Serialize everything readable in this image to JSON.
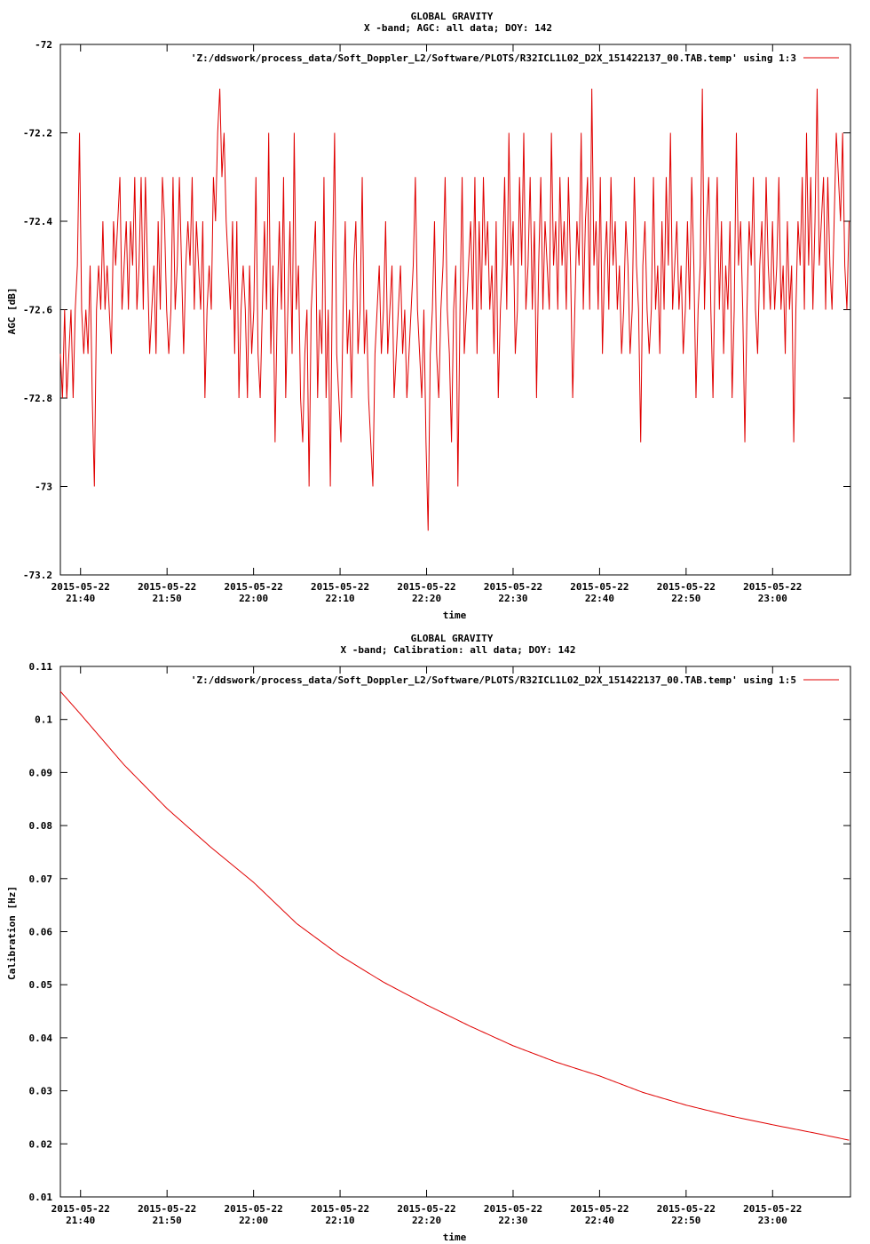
{
  "charts": [
    {
      "id": "agc",
      "title_line1": "GLOBAL GRAVITY",
      "title_line2": "X -band; AGC: all data; DOY: 142",
      "ylabel": "AGC [dB]",
      "xlabel": "time",
      "legend": "'Z:/ddswork/process_data/Soft_Doppler_L2/Software/PLOTS/R32ICL1L02_D2X_151422137_00.TAB.temp' using 1:3",
      "ytick_labels": [
        "-72",
        "-72.2",
        "-72.4",
        "-72.6",
        "-72.8",
        "-73",
        "-73.2"
      ],
      "xtick_date": "2015-05-22",
      "xtick_times": [
        "21:40",
        "21:50",
        "22:00",
        "22:10",
        "22:20",
        "22:30",
        "22:40",
        "22:50",
        "23:00"
      ]
    },
    {
      "id": "calibration",
      "title_line1": "GLOBAL GRAVITY",
      "title_line2": "X -band; Calibration: all data; DOY: 142",
      "ylabel": "Calibration [Hz]",
      "xlabel": "time",
      "legend": "'Z:/ddswork/process_data/Soft_Doppler_L2/Software/PLOTS/R32ICL1L02_D2X_151422137_00.TAB.temp' using 1:5",
      "ytick_labels": [
        "0.11",
        "0.1",
        "0.09",
        "0.08",
        "0.07",
        "0.06",
        "0.05",
        "0.04",
        "0.03",
        "0.02",
        "0.01"
      ],
      "xtick_date": "2015-05-22",
      "xtick_times": [
        "21:40",
        "21:50",
        "22:00",
        "22:10",
        "22:20",
        "22:30",
        "22:40",
        "22:50",
        "23:00"
      ]
    }
  ],
  "chart_data": [
    {
      "type": "line",
      "title": "GLOBAL GRAVITY X -band; AGC: all data; DOY: 142",
      "xlabel": "time",
      "ylabel": "AGC [dB]",
      "xlim": [
        "2015-05-22 21:37:40",
        "2015-05-22 23:09:00"
      ],
      "ylim": [
        -73.2,
        -72
      ],
      "grid": false,
      "legend_position": "top-right",
      "line_color": "#e00000",
      "x_start": "2015-05-22 21:37:40",
      "x_end": "2015-05-22 23:08:50",
      "series": [
        {
          "name": "'Z:/ddswork/process_data/Soft_Doppler_L2/Software/PLOTS/R32ICL1L02_D2X_151422137_00.TAB.temp' using 1:3",
          "values": [
            -72.7,
            -72.8,
            -72.6,
            -72.8,
            -72.7,
            -72.6,
            -72.8,
            -72.6,
            -72.5,
            -72.2,
            -72.6,
            -72.7,
            -72.6,
            -72.7,
            -72.5,
            -72.8,
            -73,
            -72.6,
            -72.5,
            -72.6,
            -72.4,
            -72.6,
            -72.5,
            -72.6,
            -72.7,
            -72.4,
            -72.5,
            -72.4,
            -72.3,
            -72.6,
            -72.5,
            -72.4,
            -72.6,
            -72.4,
            -72.5,
            -72.3,
            -72.6,
            -72.5,
            -72.3,
            -72.6,
            -72.3,
            -72.5,
            -72.7,
            -72.6,
            -72.5,
            -72.7,
            -72.4,
            -72.6,
            -72.3,
            -72.4,
            -72.6,
            -72.7,
            -72.6,
            -72.3,
            -72.6,
            -72.5,
            -72.3,
            -72.5,
            -72.7,
            -72.5,
            -72.4,
            -72.5,
            -72.3,
            -72.6,
            -72.4,
            -72.5,
            -72.6,
            -72.4,
            -72.8,
            -72.6,
            -72.5,
            -72.6,
            -72.3,
            -72.4,
            -72.2,
            -72.1,
            -72.3,
            -72.2,
            -72.4,
            -72.5,
            -72.6,
            -72.4,
            -72.7,
            -72.4,
            -72.8,
            -72.6,
            -72.5,
            -72.6,
            -72.8,
            -72.5,
            -72.7,
            -72.6,
            -72.3,
            -72.7,
            -72.8,
            -72.6,
            -72.4,
            -72.6,
            -72.2,
            -72.7,
            -72.5,
            -72.9,
            -72.6,
            -72.4,
            -72.6,
            -72.3,
            -72.8,
            -72.6,
            -72.4,
            -72.7,
            -72.2,
            -72.6,
            -72.5,
            -72.8,
            -72.9,
            -72.7,
            -72.6,
            -73,
            -72.6,
            -72.5,
            -72.4,
            -72.8,
            -72.6,
            -72.7,
            -72.3,
            -72.8,
            -72.6,
            -73,
            -72.5,
            -72.2,
            -72.7,
            -72.8,
            -72.9,
            -72.6,
            -72.4,
            -72.7,
            -72.6,
            -72.8,
            -72.5,
            -72.4,
            -72.7,
            -72.6,
            -72.3,
            -72.7,
            -72.6,
            -72.8,
            -72.9,
            -73,
            -72.7,
            -72.6,
            -72.5,
            -72.7,
            -72.6,
            -72.4,
            -72.7,
            -72.6,
            -72.5,
            -72.8,
            -72.7,
            -72.6,
            -72.5,
            -72.7,
            -72.6,
            -72.8,
            -72.7,
            -72.6,
            -72.5,
            -72.3,
            -72.6,
            -72.7,
            -72.8,
            -72.6,
            -72.9,
            -73.1,
            -72.7,
            -72.6,
            -72.4,
            -72.7,
            -72.8,
            -72.6,
            -72.5,
            -72.3,
            -72.6,
            -72.7,
            -72.9,
            -72.6,
            -72.5,
            -73,
            -72.6,
            -72.3,
            -72.7,
            -72.6,
            -72.5,
            -72.4,
            -72.6,
            -72.3,
            -72.7,
            -72.4,
            -72.6,
            -72.3,
            -72.5,
            -72.4,
            -72.6,
            -72.5,
            -72.7,
            -72.4,
            -72.8,
            -72.6,
            -72.5,
            -72.3,
            -72.6,
            -72.2,
            -72.5,
            -72.4,
            -72.7,
            -72.6,
            -72.3,
            -72.5,
            -72.2,
            -72.6,
            -72.5,
            -72.3,
            -72.6,
            -72.4,
            -72.8,
            -72.5,
            -72.3,
            -72.6,
            -72.4,
            -72.5,
            -72.6,
            -72.2,
            -72.5,
            -72.4,
            -72.6,
            -72.3,
            -72.5,
            -72.4,
            -72.6,
            -72.3,
            -72.5,
            -72.8,
            -72.6,
            -72.4,
            -72.5,
            -72.2,
            -72.6,
            -72.4,
            -72.3,
            -72.6,
            -72.1,
            -72.5,
            -72.4,
            -72.6,
            -72.3,
            -72.7,
            -72.5,
            -72.4,
            -72.6,
            -72.3,
            -72.5,
            -72.4,
            -72.6,
            -72.5,
            -72.7,
            -72.6,
            -72.4,
            -72.5,
            -72.7,
            -72.6,
            -72.3,
            -72.5,
            -72.6,
            -72.9,
            -72.5,
            -72.4,
            -72.6,
            -72.7,
            -72.6,
            -72.3,
            -72.6,
            -72.5,
            -72.7,
            -72.4,
            -72.6,
            -72.3,
            -72.5,
            -72.2,
            -72.6,
            -72.5,
            -72.4,
            -72.6,
            -72.5,
            -72.7,
            -72.6,
            -72.4,
            -72.6,
            -72.3,
            -72.5,
            -72.8,
            -72.6,
            -72.5,
            -72.1,
            -72.6,
            -72.4,
            -72.3,
            -72.6,
            -72.8,
            -72.5,
            -72.3,
            -72.6,
            -72.4,
            -72.7,
            -72.5,
            -72.6,
            -72.4,
            -72.8,
            -72.6,
            -72.2,
            -72.5,
            -72.4,
            -72.6,
            -72.9,
            -72.6,
            -72.4,
            -72.5,
            -72.3,
            -72.6,
            -72.7,
            -72.5,
            -72.4,
            -72.6,
            -72.3,
            -72.5,
            -72.6,
            -72.4,
            -72.6,
            -72.5,
            -72.3,
            -72.6,
            -72.5,
            -72.7,
            -72.4,
            -72.6,
            -72.5,
            -72.9,
            -72.6,
            -72.4,
            -72.5,
            -72.3,
            -72.6,
            -72.2,
            -72.5,
            -72.3,
            -72.6,
            -72.4,
            -72.1,
            -72.5,
            -72.4,
            -72.3,
            -72.6,
            -72.3,
            -72.5,
            -72.6,
            -72.4,
            -72.2,
            -72.3,
            -72.4,
            -72.2,
            -72.5,
            -72.6,
            -72.4
          ]
        }
      ]
    },
    {
      "type": "line",
      "title": "GLOBAL GRAVITY X -band; Calibration: all data; DOY: 142",
      "xlabel": "time",
      "ylabel": "Calibration [Hz]",
      "xlim": [
        "2015-05-22 21:37:40",
        "2015-05-22 23:09:00"
      ],
      "ylim": [
        0.01,
        0.11
      ],
      "grid": false,
      "legend_position": "top-right",
      "line_color": "#e00000",
      "series": [
        {
          "name": "'Z:/ddswork/process_data/Soft_Doppler_L2/Software/PLOTS/R32ICL1L02_D2X_151422137_00.TAB.temp' using 1:5",
          "x": [
            "2015-05-22 21:37:40",
            "2015-05-22 21:40:00",
            "2015-05-22 21:45:00",
            "2015-05-22 21:50:00",
            "2015-05-22 21:55:00",
            "2015-05-22 22:00:00",
            "2015-05-22 22:05:00",
            "2015-05-22 22:10:00",
            "2015-05-22 22:15:00",
            "2015-05-22 22:20:00",
            "2015-05-22 22:25:00",
            "2015-05-22 22:30:00",
            "2015-05-22 22:35:00",
            "2015-05-22 22:40:00",
            "2015-05-22 22:45:00",
            "2015-05-22 22:50:00",
            "2015-05-22 22:55:00",
            "2015-05-22 23:00:00",
            "2015-05-22 23:05:00",
            "2015-05-22 23:08:50"
          ],
          "y": [
            0.1053,
            0.101,
            0.0915,
            0.0832,
            0.076,
            0.0693,
            0.0615,
            0.0555,
            0.0505,
            0.0462,
            0.0422,
            0.0385,
            0.0354,
            0.0328,
            0.0297,
            0.0273,
            0.0253,
            0.0236,
            0.022,
            0.0207
          ]
        }
      ]
    }
  ]
}
